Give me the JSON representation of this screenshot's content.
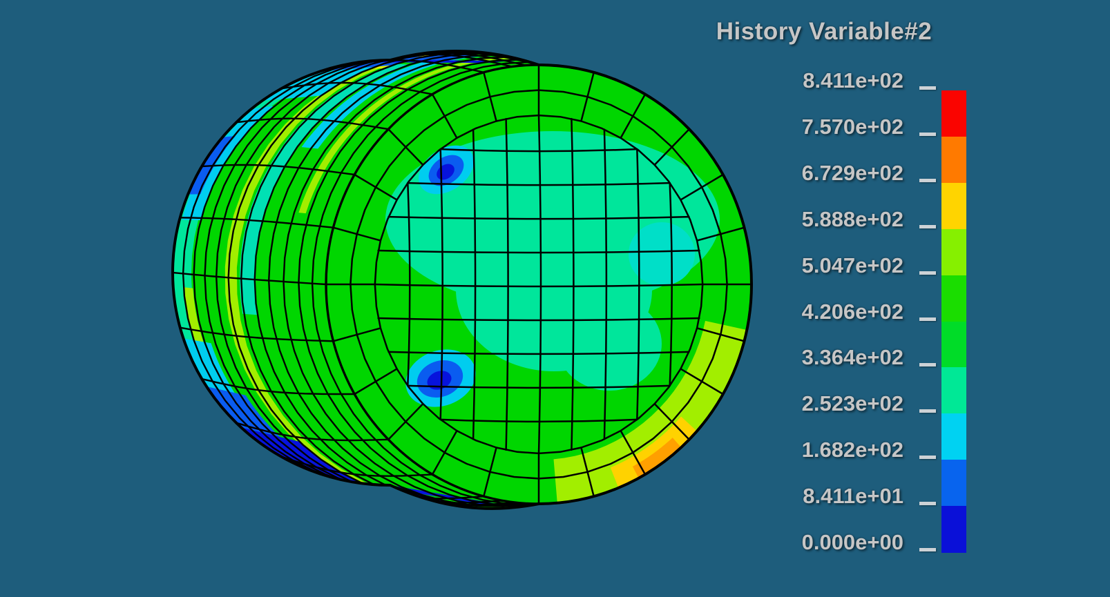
{
  "app": {
    "background": "#1E5D7C",
    "view": "3D finite-element model viewport"
  },
  "legend": {
    "title": "History Variable#2",
    "text_color": "#C6C6C6",
    "tick_color": "#CDD2D6",
    "entries": [
      "8.411e+02",
      "7.570e+02",
      "6.729e+02",
      "5.888e+02",
      "5.047e+02",
      "4.206e+02",
      "3.364e+02",
      "2.523e+02",
      "1.682e+02",
      "8.411e+01",
      "0.000e+00"
    ],
    "colors_top_to_bottom": [
      "#FA0400",
      "#FF7A00",
      "#FFD400",
      "#86F000",
      "#1ADD00",
      "#00DC28",
      "#00E896",
      "#00D2F2",
      "#0864EE",
      "#0A10D8"
    ]
  },
  "chart_data": {
    "type": "heatmap",
    "title": "History Variable#2",
    "plot_kind": "3D finite-element fringe (contour) plot of a deformed barrel-shaped cylinder mesh",
    "colorbar": {
      "position": "right",
      "range": [
        0.0,
        841.1
      ],
      "levels": [
        0.0,
        84.11,
        168.2,
        252.3,
        336.4,
        420.6,
        504.7,
        588.8,
        672.9,
        757.0,
        841.1
      ],
      "tick_labels_bottom_to_top": [
        "0.000e+00",
        "8.411e+01",
        "1.682e+02",
        "2.523e+02",
        "3.364e+02",
        "4.206e+02",
        "5.047e+02",
        "5.888e+02",
        "6.729e+02",
        "7.570e+02",
        "8.411e+02"
      ],
      "segment_colors_bottom_to_top": [
        "#0A10D8",
        "#0864EE",
        "#00D2F2",
        "#00E896",
        "#00DC28",
        "#1ADD00",
        "#86F000",
        "#FFD400",
        "#FF7A00",
        "#FA0400"
      ]
    },
    "field_summary": {
      "dominant_level": "~340-500 (green)",
      "features": [
        "near-zero (dark blue) crumpled bands along top-left and bottom-left silhouette of lateral surface",
        "two low-value blue spots with cyan halos on the end face",
        "mid-low teal/spring-green region across upper half of end face",
        "yellow-green streaks (~500-590) running around the lateral surface",
        "small high value (~590-680) orange/gold sliver at lower-right rim of end face",
        "bright yellow streak near top of lateral surface"
      ]
    }
  },
  "mesh": {
    "palette": {
      "green": "#00D600",
      "teal": "#00E69B",
      "tealLight": "#00E0B4",
      "cyanSoft": "#00DFC8",
      "cyan": "#00CDEF",
      "royal": "#0A5CF0",
      "dark": "#0713DC",
      "chart": "#A2EE00",
      "yellow": "#E6F400",
      "gold": "#FFD200",
      "orange": "#FFA000",
      "line": "#000000"
    }
  }
}
